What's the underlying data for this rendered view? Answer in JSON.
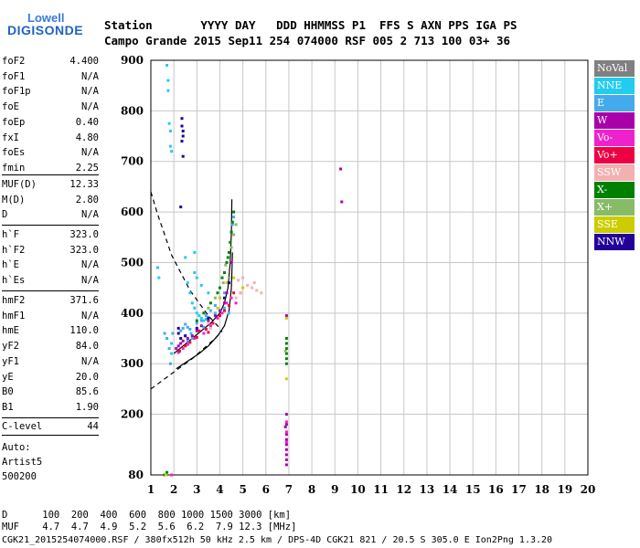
{
  "logo": {
    "line1": "Lowell",
    "line2": "DIGISONDE"
  },
  "header": {
    "row1": "Station       YYYY DAY   DDD HHMMSS P1  FFS S AXN PPS IGA PS",
    "row2": "Campo Grande 2015 Sep11 254 074000 RSF 005 2 713 100 03+ 36"
  },
  "params_group1": [
    {
      "label": "foF2",
      "value": "4.400"
    },
    {
      "label": "foF1",
      "value": "N/A"
    },
    {
      "label": "foF1p",
      "value": "N/A"
    },
    {
      "label": "foE",
      "value": "N/A"
    },
    {
      "label": "foEp",
      "value": "0.40"
    },
    {
      "label": "fxI",
      "value": "4.80"
    },
    {
      "label": "foEs",
      "value": "N/A"
    },
    {
      "label": "fmin",
      "value": "2.25"
    }
  ],
  "params_group2": [
    {
      "label": "MUF(D)",
      "value": "12.33"
    },
    {
      "label": "M(D)",
      "value": "2.80"
    },
    {
      "label": "D",
      "value": "N/A"
    }
  ],
  "params_group3": [
    {
      "label": "h`F",
      "value": "323.0"
    },
    {
      "label": "h`F2",
      "value": "323.0"
    },
    {
      "label": "h`E",
      "value": "N/A"
    },
    {
      "label": "h`Es",
      "value": "N/A"
    }
  ],
  "params_group4": [
    {
      "label": "hmF2",
      "value": "371.6"
    },
    {
      "label": "hmF1",
      "value": "N/A"
    },
    {
      "label": "hmE",
      "value": "110.0"
    },
    {
      "label": "yF2",
      "value": "84.0"
    },
    {
      "label": "yF1",
      "value": "N/A"
    },
    {
      "label": "yE",
      "value": "20.0"
    },
    {
      "label": "B0",
      "value": "85.6"
    },
    {
      "label": "B1",
      "value": "1.90"
    }
  ],
  "params_group5": [
    {
      "label": "C-level",
      "value": "44"
    }
  ],
  "auto_block": [
    "Auto:",
    "Artist5",
    "500200"
  ],
  "footer": {
    "d_row": "D      100  200  400  600  800 1000 1500 3000 [km]",
    "muf_row": "MUF    4.7  4.7  4.9  5.2  5.6  6.2  7.9 12.3 [MHz]",
    "file_row": "CGK21_2015254074000.RSF / 380fx512h 50 kHz 2.5 km / DPS-4D CGK21 821 / 20.5 S 305.0 E Ion2Png 1.3.20"
  },
  "legend": [
    {
      "label": "NoVal",
      "color": "#808080",
      "text_color": "#ffffff"
    },
    {
      "label": "NNE",
      "color": "#22ccee",
      "text_color": "#ffffff"
    },
    {
      "label": "E",
      "color": "#44aaee",
      "text_color": "#ffffff"
    },
    {
      "label": "W",
      "color": "#aa00aa",
      "text_color": "#ffffff"
    },
    {
      "label": "Vo-",
      "color": "#ee22cc",
      "text_color": "#ffffff"
    },
    {
      "label": "Vo+",
      "color": "#ee0044",
      "text_color": "#ffffff"
    },
    {
      "label": "SSW",
      "color": "#f4b0b0",
      "text_color": "#ffffff"
    },
    {
      "label": "X-",
      "color": "#008000",
      "text_color": "#ffffff"
    },
    {
      "label": "X+",
      "color": "#88bb66",
      "text_color": "#ffffff"
    },
    {
      "label": "SSE",
      "color": "#cccc00",
      "text_color": "#ffffff"
    },
    {
      "label": "NNW",
      "color": "#220099",
      "text_color": "#ffffff"
    }
  ],
  "chart_data": {
    "type": "scatter",
    "xlim": [
      1,
      20
    ],
    "ylim": [
      80,
      900
    ],
    "x_ticks": [
      1,
      2,
      3,
      4,
      5,
      6,
      7,
      8,
      9,
      10,
      11,
      12,
      13,
      14,
      15,
      16,
      17,
      18,
      19,
      20
    ],
    "y_ticks": [
      80,
      200,
      300,
      400,
      500,
      600,
      700,
      800,
      900
    ],
    "grid": true,
    "series": [
      {
        "name": "NNE",
        "color": "#22ccee",
        "points": [
          [
            1.3,
            490
          ],
          [
            1.35,
            470
          ],
          [
            1.7,
            890
          ],
          [
            1.75,
            860
          ],
          [
            1.75,
            840
          ],
          [
            1.8,
            775
          ],
          [
            1.85,
            760
          ],
          [
            1.85,
            730
          ],
          [
            1.9,
            720
          ],
          [
            2.6,
            460
          ],
          [
            2.7,
            440
          ],
          [
            2.8,
            420
          ],
          [
            2.9,
            410
          ],
          [
            3.0,
            400
          ],
          [
            3.1,
            395
          ],
          [
            3.2,
            390
          ],
          [
            3.3,
            385
          ],
          [
            3.4,
            388
          ],
          [
            3.5,
            392
          ],
          [
            2.9,
            480
          ],
          [
            3.0,
            470
          ],
          [
            3.2,
            455
          ],
          [
            3.5,
            440
          ],
          [
            2.5,
            510
          ],
          [
            2.9,
            520
          ],
          [
            2.75,
            360
          ],
          [
            2.8,
            350
          ],
          [
            3.8,
            400
          ],
          [
            4.0,
            405
          ],
          [
            4.2,
            410
          ],
          [
            1.9,
            340
          ],
          [
            1.9,
            320
          ],
          [
            4.4,
            400
          ]
        ]
      },
      {
        "name": "E",
        "color": "#44aaee",
        "points": [
          [
            1.6,
            360
          ],
          [
            1.7,
            350
          ],
          [
            1.8,
            330
          ],
          [
            1.85,
            300
          ],
          [
            2.3,
            365
          ],
          [
            2.4,
            370
          ],
          [
            2.5,
            378
          ],
          [
            2.6,
            372
          ],
          [
            2.7,
            368
          ],
          [
            2.5,
            355
          ],
          [
            2.6,
            345
          ],
          [
            3.0,
            380
          ],
          [
            3.2,
            385
          ],
          [
            3.4,
            395
          ],
          [
            3.6,
            405
          ],
          [
            3.8,
            415
          ],
          [
            4.6,
            590
          ],
          [
            4.55,
            575
          ],
          [
            4.5,
            560
          ],
          [
            4.0,
            430
          ],
          [
            4.2,
            440
          ],
          [
            3.3,
            372
          ],
          [
            1.95,
            360
          ]
        ]
      },
      {
        "name": "W",
        "color": "#aa00aa",
        "points": [
          [
            2.1,
            330
          ],
          [
            2.2,
            335
          ],
          [
            2.3,
            340
          ],
          [
            2.4,
            345
          ],
          [
            2.6,
            350
          ],
          [
            2.8,
            355
          ],
          [
            3.0,
            365
          ],
          [
            3.2,
            375
          ],
          [
            3.5,
            385
          ],
          [
            3.8,
            395
          ],
          [
            4.0,
            405
          ],
          [
            4.2,
            420
          ],
          [
            4.3,
            440
          ],
          [
            4.4,
            470
          ],
          [
            4.5,
            500
          ],
          [
            6.9,
            200
          ],
          [
            6.9,
            180
          ],
          [
            6.9,
            160
          ],
          [
            6.9,
            150
          ],
          [
            6.9,
            140
          ],
          [
            6.9,
            130
          ],
          [
            6.9,
            120
          ],
          [
            6.9,
            110
          ],
          [
            6.9,
            100
          ],
          [
            6.85,
            175
          ],
          [
            6.9,
            395
          ],
          [
            9.25,
            685
          ],
          [
            9.3,
            620
          ]
        ]
      },
      {
        "name": "Vo-",
        "color": "#ee22cc",
        "points": [
          [
            2.2,
            322
          ],
          [
            2.4,
            330
          ],
          [
            2.6,
            338
          ],
          [
            2.9,
            350
          ],
          [
            3.3,
            360
          ],
          [
            3.6,
            375
          ],
          [
            3.9,
            390
          ],
          [
            4.1,
            400
          ],
          [
            4.3,
            420
          ],
          [
            4.5,
            430
          ],
          [
            4.7,
            420
          ],
          [
            4.9,
            440
          ],
          [
            6.9,
            185
          ],
          [
            6.9,
            165
          ],
          [
            6.9,
            145
          ],
          [
            1.9,
            80
          ]
        ]
      },
      {
        "name": "Vo+",
        "color": "#ee0044",
        "points": [
          [
            2.25,
            325
          ],
          [
            2.5,
            335
          ],
          [
            2.7,
            342
          ],
          [
            3.0,
            352
          ],
          [
            3.4,
            368
          ],
          [
            3.7,
            380
          ],
          [
            4.0,
            395
          ],
          [
            4.2,
            405
          ],
          [
            4.4,
            415
          ],
          [
            4.6,
            440
          ],
          [
            3.1,
            365
          ],
          [
            3.5,
            362
          ]
        ]
      },
      {
        "name": "SSW",
        "color": "#f4b0b0",
        "points": [
          [
            4.7,
            430
          ],
          [
            4.9,
            440
          ],
          [
            5.0,
            450
          ],
          [
            5.2,
            455
          ],
          [
            5.4,
            450
          ],
          [
            5.6,
            445
          ],
          [
            5.8,
            440
          ],
          [
            5.5,
            460
          ],
          [
            5.0,
            470
          ],
          [
            3.5,
            380
          ],
          [
            3.6,
            370
          ],
          [
            4.8,
            465
          ]
        ]
      },
      {
        "name": "X-",
        "color": "#008000",
        "points": [
          [
            4.3,
            500
          ],
          [
            4.35,
            510
          ],
          [
            4.4,
            520
          ],
          [
            4.45,
            540
          ],
          [
            4.5,
            560
          ],
          [
            4.55,
            580
          ],
          [
            4.6,
            600
          ],
          [
            4.2,
            480
          ],
          [
            4.1,
            470
          ],
          [
            4.0,
            450
          ],
          [
            3.9,
            440
          ],
          [
            3.6,
            420
          ],
          [
            3.3,
            400
          ],
          [
            3.0,
            385
          ],
          [
            6.9,
            350
          ],
          [
            6.9,
            340
          ],
          [
            6.9,
            330
          ],
          [
            6.9,
            320
          ],
          [
            6.9,
            310
          ],
          [
            6.9,
            300
          ],
          [
            1.6,
            80
          ],
          [
            1.7,
            85
          ]
        ]
      },
      {
        "name": "X+",
        "color": "#88bb66",
        "points": [
          [
            4.25,
            495
          ],
          [
            4.5,
            530
          ],
          [
            4.6,
            555
          ],
          [
            4.7,
            575
          ],
          [
            4.4,
            470
          ],
          [
            4.15,
            460
          ],
          [
            3.8,
            430
          ],
          [
            3.5,
            410
          ],
          [
            6.85,
            325
          ]
        ]
      },
      {
        "name": "SSE",
        "color": "#cccc00",
        "points": [
          [
            3.9,
            410
          ],
          [
            4.0,
            430
          ],
          [
            4.3,
            460
          ],
          [
            4.6,
            470
          ],
          [
            5.0,
            450
          ],
          [
            6.9,
            390
          ],
          [
            6.9,
            270
          ],
          [
            1.65,
            80
          ]
        ]
      },
      {
        "name": "NNW",
        "color": "#220099",
        "points": [
          [
            2.35,
            785
          ],
          [
            2.35,
            770
          ],
          [
            2.4,
            760
          ],
          [
            2.4,
            750
          ],
          [
            2.35,
            740
          ],
          [
            2.4,
            710
          ],
          [
            2.3,
            610
          ],
          [
            2.2,
            370
          ],
          [
            2.2,
            360
          ],
          [
            2.3,
            350
          ],
          [
            2.5,
            355
          ],
          [
            3.0,
            370
          ],
          [
            3.5,
            390
          ],
          [
            4.2,
            430
          ],
          [
            4.4,
            460
          ]
        ]
      }
    ],
    "profile_solid": [
      [
        2.0,
        320
      ],
      [
        2.4,
        335
      ],
      [
        2.8,
        350
      ],
      [
        3.2,
        365
      ],
      [
        3.6,
        380
      ],
      [
        4.0,
        400
      ],
      [
        4.2,
        420
      ],
      [
        4.35,
        450
      ],
      [
        4.45,
        500
      ],
      [
        4.5,
        560
      ],
      [
        4.52,
        625
      ]
    ],
    "profile_solid2": [
      [
        2.1,
        290
      ],
      [
        2.6,
        305
      ],
      [
        3.1,
        320
      ],
      [
        3.5,
        335
      ],
      [
        3.9,
        355
      ],
      [
        4.2,
        375
      ],
      [
        4.4,
        405
      ],
      [
        4.5,
        450
      ],
      [
        4.55,
        520
      ]
    ],
    "dashed_curve1": [
      [
        1.0,
        640
      ],
      [
        1.3,
        595
      ],
      [
        1.6,
        555
      ],
      [
        1.9,
        515
      ],
      [
        2.3,
        480
      ],
      [
        2.7,
        445
      ],
      [
        3.1,
        420
      ],
      [
        3.5,
        395
      ],
      [
        3.8,
        380
      ],
      [
        4.0,
        370
      ]
    ],
    "dashed_curve2": [
      [
        1.0,
        250
      ],
      [
        1.6,
        270
      ],
      [
        2.2,
        290
      ],
      [
        2.8,
        310
      ],
      [
        3.3,
        330
      ],
      [
        3.8,
        350
      ],
      [
        4.1,
        365
      ]
    ]
  }
}
